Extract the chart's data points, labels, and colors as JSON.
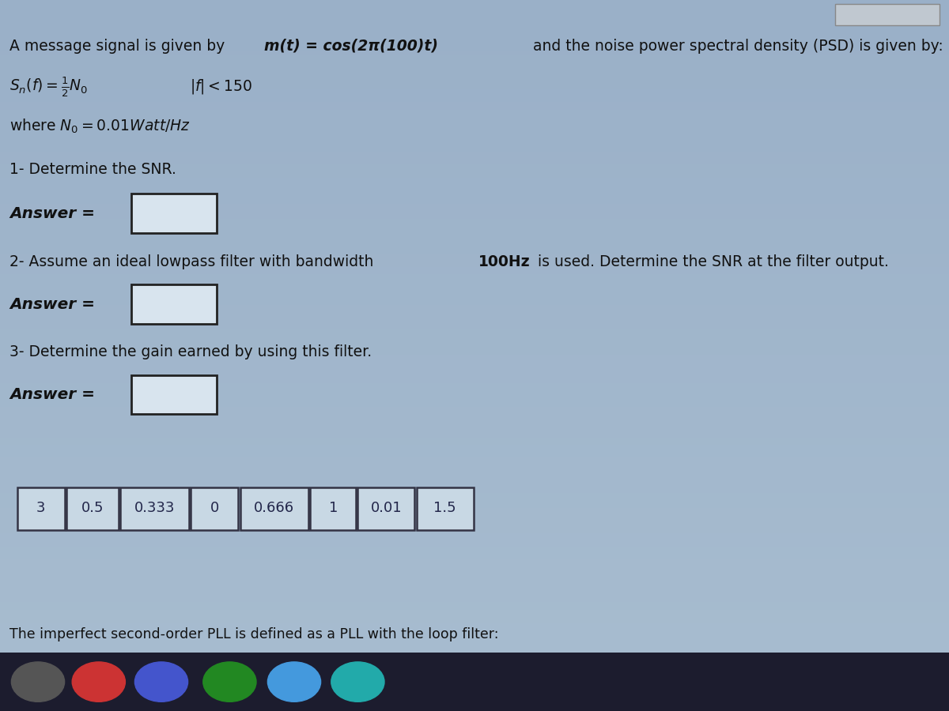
{
  "bg_color_top": "#9ab0c8",
  "bg_color_bottom": "#a8bdd0",
  "text_color": "#111111",
  "dark_text": "#1a1a3a",
  "line1_plain": "A message signal is given by ",
  "line1_bold": "m(t) = cos(2π(100)t)",
  "line1_end": "  and the noise power spectral density (PSD) is given by:",
  "line2": "S_n(f) = (1/2)N_0    |f| < 150",
  "line3": "where N_0 = 0.01Watt/Hz",
  "q1": "1- Determine the SNR.",
  "q2_plain": "2- Assume an ideal lowpass filter with bandwidth ",
  "q2_bold": "100Hz",
  "q2_end": " is used. Determine the SNR at the filter output.",
  "q3": "3- Determine the gain earned by using this filter.",
  "answer_label": "Answer =",
  "choices": [
    "3",
    "0.5",
    "0.333",
    "0",
    "0.666",
    "1",
    "0.01",
    "1.5"
  ],
  "bottom_text": "The imperfect second-order PLL is defined as a PLL with the loop filter:",
  "answer_box_color": "#d8e4ee",
  "answer_box_edge": "#222222",
  "choice_box_color": "#c8d8e4",
  "choice_box_edge": "#333344",
  "choice_text_color": "#22264a"
}
